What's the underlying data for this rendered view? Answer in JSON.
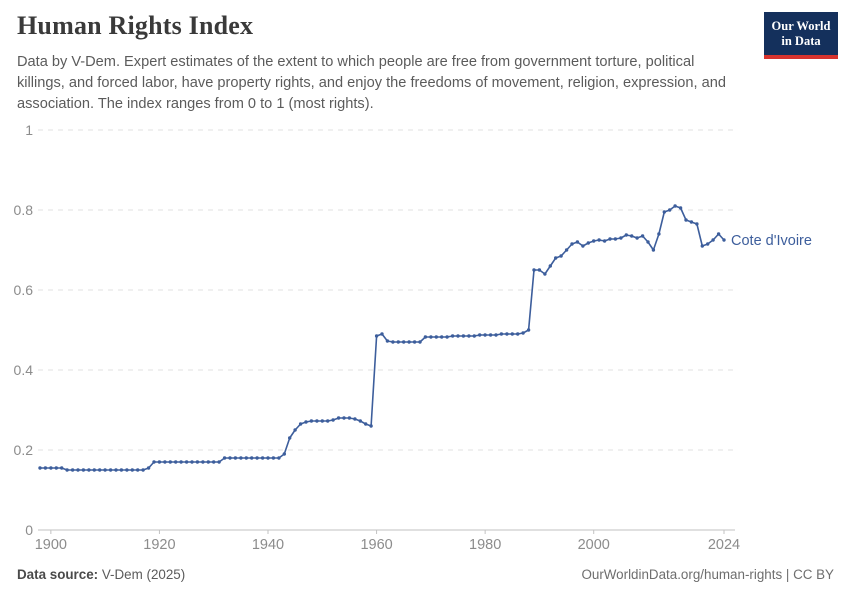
{
  "header": {
    "title": "Human Rights Index",
    "subtitle": "Data by V-Dem. Expert estimates of the extent to which people are free from government torture, political killings, and forced labor, have property rights, and enjoy the freedoms of movement, religion, expression, and association. The index ranges from 0 to 1 (most rights).",
    "logo": {
      "line1": "Our World",
      "line2": "in Data"
    }
  },
  "chart_data": {
    "type": "line",
    "title": "Human Rights Index",
    "xlabel": "",
    "ylabel": "",
    "ylim": [
      0,
      1
    ],
    "xlim": [
      1898,
      2024
    ],
    "grid": "horizontal-dashed",
    "legend_position": "end-of-line-label",
    "y_ticks": [
      0,
      0.2,
      0.4,
      0.6,
      0.8,
      1
    ],
    "y_tick_labels": [
      "0",
      "0.2",
      "0.4",
      "0.6",
      "0.8",
      "1"
    ],
    "x_ticks": [
      1900,
      1920,
      1940,
      1960,
      1980,
      2000,
      2024
    ],
    "x_tick_labels": [
      "1900",
      "1920",
      "1940",
      "1960",
      "1980",
      "2000",
      "2024"
    ],
    "series": [
      {
        "name": "Cote d'Ivoire",
        "color": "#3d5e9c",
        "start_year": 1898,
        "values": [
          0.155,
          0.155,
          0.155,
          0.155,
          0.155,
          0.15,
          0.15,
          0.15,
          0.15,
          0.15,
          0.15,
          0.15,
          0.15,
          0.15,
          0.15,
          0.15,
          0.15,
          0.15,
          0.15,
          0.15,
          0.155,
          0.17,
          0.17,
          0.17,
          0.17,
          0.17,
          0.17,
          0.17,
          0.17,
          0.17,
          0.17,
          0.17,
          0.17,
          0.17,
          0.18,
          0.18,
          0.18,
          0.18,
          0.18,
          0.18,
          0.18,
          0.18,
          0.18,
          0.18,
          0.18,
          0.19,
          0.23,
          0.25,
          0.265,
          0.27,
          0.2725,
          0.2725,
          0.2725,
          0.2725,
          0.275,
          0.28,
          0.28,
          0.28,
          0.2775,
          0.2725,
          0.265,
          0.26,
          0.485,
          0.49,
          0.4725,
          0.47,
          0.47,
          0.47,
          0.47,
          0.47,
          0.47,
          0.4825,
          0.4825,
          0.4825,
          0.4825,
          0.4825,
          0.485,
          0.485,
          0.485,
          0.485,
          0.485,
          0.4875,
          0.4875,
          0.4875,
          0.4875,
          0.49,
          0.49,
          0.49,
          0.49,
          0.4925,
          0.5,
          0.65,
          0.65,
          0.64,
          0.66,
          0.68,
          0.685,
          0.7,
          0.715,
          0.72,
          0.71,
          0.7175,
          0.7225,
          0.725,
          0.7225,
          0.7275,
          0.7275,
          0.73,
          0.7375,
          0.735,
          0.73,
          0.735,
          0.72,
          0.7,
          0.74,
          0.795,
          0.8,
          0.81,
          0.805,
          0.775,
          0.77,
          0.765,
          0.71,
          0.715,
          0.725,
          0.74,
          0.725
        ]
      }
    ],
    "entity_label": "Cote d'Ivoire",
    "colors": {
      "line": "#3d5e9c",
      "grid": "#e0e0e0",
      "axis": "#c2c2c2",
      "tick_text": "#8c8c8c",
      "entity_label": "#3d5e9c"
    }
  },
  "footer": {
    "source_label": "Data source:",
    "source_value": " V-Dem (2025)",
    "credit": "OurWorldinData.org/human-rights | CC BY"
  }
}
